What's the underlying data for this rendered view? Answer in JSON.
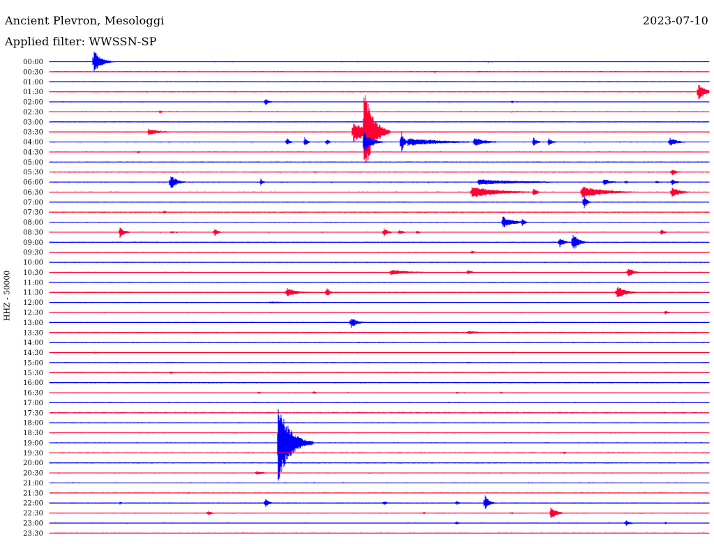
{
  "header": {
    "station": "Ancient Plevron, Mesologgi",
    "filter": "Applied filter: WWSSN-SP",
    "date": "2023-07-10"
  },
  "colors": {
    "even": "#0000ff",
    "odd": "#ff0033"
  },
  "chart_data": {
    "type": "line",
    "title": "Ancient Plevron, Mesologgi",
    "subtitle": "Applied filter: WWSSN-SP",
    "date": "2023-07-10",
    "ylabel": "HHZ - 50000",
    "xlabel": "",
    "row_labels": [
      "00:00",
      "00:30",
      "01:00",
      "01:30",
      "02:00",
      "02:30",
      "03:00",
      "03:30",
      "04:00",
      "04:30",
      "05:00",
      "05:30",
      "06:00",
      "06:30",
      "07:00",
      "07:30",
      "08:00",
      "08:30",
      "09:00",
      "09:30",
      "10:00",
      "10:30",
      "11:00",
      "11:30",
      "12:00",
      "12:30",
      "13:00",
      "13:30",
      "14:00",
      "14:30",
      "15:00",
      "15:30",
      "16:00",
      "16:30",
      "17:00",
      "17:30",
      "18:00",
      "18:30",
      "19:00",
      "19:30",
      "20:00",
      "20:30",
      "21:00",
      "21:30",
      "22:00",
      "22:30",
      "23:00",
      "23:30"
    ],
    "row_minutes": 30,
    "series_colors": [
      "#0000ff",
      "#ff0033"
    ],
    "events": [
      {
        "row": 0,
        "minute": 2.0,
        "amp": 18,
        "dur": 1.0
      },
      {
        "row": 0,
        "minute": 2.1,
        "amp": 6,
        "dur": 0.4
      },
      {
        "row": 1,
        "minute": 17.5,
        "amp": 1.5,
        "dur": 1.0
      },
      {
        "row": 1,
        "minute": 19.5,
        "amp": 1.5,
        "dur": 0.3
      },
      {
        "row": 3,
        "minute": 29.5,
        "amp": 13,
        "dur": 1.0
      },
      {
        "row": 4,
        "minute": 9.8,
        "amp": 6,
        "dur": 0.5
      },
      {
        "row": 4,
        "minute": 21.0,
        "amp": 3,
        "dur": 0.3
      },
      {
        "row": 5,
        "minute": 5.0,
        "amp": 2.5,
        "dur": 0.5
      },
      {
        "row": 5,
        "minute": 21.0,
        "amp": 1.2,
        "dur": 0.6
      },
      {
        "row": 7,
        "minute": 4.5,
        "amp": 5,
        "dur": 1.6
      },
      {
        "row": 7,
        "minute": 13.8,
        "amp": 16,
        "dur": 2.0
      },
      {
        "row": 7,
        "minute": 14.3,
        "amp": 70,
        "dur": 1.2
      },
      {
        "row": 8,
        "minute": 10.8,
        "amp": 6,
        "dur": 0.4
      },
      {
        "row": 8,
        "minute": 11.6,
        "amp": 8,
        "dur": 0.4
      },
      {
        "row": 8,
        "minute": 12.6,
        "amp": 5,
        "dur": 0.4
      },
      {
        "row": 8,
        "minute": 14.3,
        "amp": 16,
        "dur": 1.0
      },
      {
        "row": 8,
        "minute": 16.0,
        "amp": 18,
        "dur": 0.4
      },
      {
        "row": 8,
        "minute": 16.3,
        "amp": 6,
        "dur": 4.8
      },
      {
        "row": 8,
        "minute": 19.3,
        "amp": 7,
        "dur": 1.6
      },
      {
        "row": 8,
        "minute": 22.0,
        "amp": 8,
        "dur": 0.5
      },
      {
        "row": 8,
        "minute": 22.7,
        "amp": 6,
        "dur": 0.5
      },
      {
        "row": 8,
        "minute": 28.2,
        "amp": 7,
        "dur": 1.0
      },
      {
        "row": 9,
        "minute": 4.0,
        "amp": 2.5,
        "dur": 0.4
      },
      {
        "row": 10,
        "minute": 7.2,
        "amp": 1.5,
        "dur": 0.3
      },
      {
        "row": 11,
        "minute": 28.3,
        "amp": 6,
        "dur": 0.6
      },
      {
        "row": 11,
        "minute": 12.0,
        "amp": 1.2,
        "dur": 2.0
      },
      {
        "row": 12,
        "minute": 5.5,
        "amp": 12,
        "dur": 0.8
      },
      {
        "row": 12,
        "minute": 9.6,
        "amp": 6,
        "dur": 0.3
      },
      {
        "row": 12,
        "minute": 19.5,
        "amp": 4,
        "dur": 7.0
      },
      {
        "row": 12,
        "minute": 25.2,
        "amp": 5,
        "dur": 1.0
      },
      {
        "row": 12,
        "minute": 26.2,
        "amp": 3,
        "dur": 0.4
      },
      {
        "row": 12,
        "minute": 27.6,
        "amp": 3,
        "dur": 0.4
      },
      {
        "row": 12,
        "minute": 28.3,
        "amp": 5,
        "dur": 0.6
      },
      {
        "row": 13,
        "minute": 19.2,
        "amp": 8,
        "dur": 4.0
      },
      {
        "row": 13,
        "minute": 22.0,
        "amp": 6,
        "dur": 0.6
      },
      {
        "row": 13,
        "minute": 24.2,
        "amp": 9,
        "dur": 3.2
      },
      {
        "row": 13,
        "minute": 28.3,
        "amp": 8,
        "dur": 1.2
      },
      {
        "row": 14,
        "minute": 24.3,
        "amp": 12,
        "dur": 0.4
      },
      {
        "row": 15,
        "minute": 5.2,
        "amp": 2.5,
        "dur": 0.5
      },
      {
        "row": 16,
        "minute": 20.6,
        "amp": 9,
        "dur": 1.5
      },
      {
        "row": 16,
        "minute": 21.5,
        "amp": 7,
        "dur": 0.4
      },
      {
        "row": 17,
        "minute": 3.2,
        "amp": 9,
        "dur": 0.6
      },
      {
        "row": 17,
        "minute": 7.5,
        "amp": 7,
        "dur": 0.5
      },
      {
        "row": 17,
        "minute": 15.2,
        "amp": 7,
        "dur": 0.6
      },
      {
        "row": 17,
        "minute": 15.9,
        "amp": 4,
        "dur": 0.6
      },
      {
        "row": 17,
        "minute": 16.7,
        "amp": 3,
        "dur": 0.5
      },
      {
        "row": 17,
        "minute": 5.5,
        "amp": 1.5,
        "dur": 2.0
      },
      {
        "row": 17,
        "minute": 27.8,
        "amp": 5,
        "dur": 0.5
      },
      {
        "row": 18,
        "minute": 23.2,
        "amp": 8,
        "dur": 0.6
      },
      {
        "row": 18,
        "minute": 23.8,
        "amp": 14,
        "dur": 0.8
      },
      {
        "row": 19,
        "minute": 19.2,
        "amp": 3,
        "dur": 0.5
      },
      {
        "row": 21,
        "minute": 15.5,
        "amp": 4,
        "dur": 3.0
      },
      {
        "row": 21,
        "minute": 19.0,
        "amp": 4,
        "dur": 0.6
      },
      {
        "row": 21,
        "minute": 26.3,
        "amp": 7,
        "dur": 0.8
      },
      {
        "row": 23,
        "minute": 10.8,
        "amp": 7,
        "dur": 1.4
      },
      {
        "row": 23,
        "minute": 12.6,
        "amp": 9,
        "dur": 0.4
      },
      {
        "row": 23,
        "minute": 25.8,
        "amp": 10,
        "dur": 1.2
      },
      {
        "row": 24,
        "minute": 10.0,
        "amp": 1.5,
        "dur": 5.0
      },
      {
        "row": 25,
        "minute": 28.0,
        "amp": 3,
        "dur": 0.5
      },
      {
        "row": 26,
        "minute": 13.7,
        "amp": 9,
        "dur": 0.8
      },
      {
        "row": 27,
        "minute": 19.0,
        "amp": 3,
        "dur": 1.6
      },
      {
        "row": 27,
        "minute": 4.0,
        "amp": 1.2,
        "dur": 1.5
      },
      {
        "row": 29,
        "minute": 2.0,
        "amp": 1.5,
        "dur": 2.0
      },
      {
        "row": 29,
        "minute": 21.0,
        "amp": 1.2,
        "dur": 1.5
      },
      {
        "row": 31,
        "minute": 5.5,
        "amp": 2.5,
        "dur": 0.4
      },
      {
        "row": 33,
        "minute": 9.5,
        "amp": 2,
        "dur": 0.4
      },
      {
        "row": 33,
        "minute": 12.0,
        "amp": 2.5,
        "dur": 0.5
      },
      {
        "row": 33,
        "minute": 18.5,
        "amp": 2,
        "dur": 0.4
      },
      {
        "row": 33,
        "minute": 20.5,
        "amp": 2,
        "dur": 0.4
      },
      {
        "row": 38,
        "minute": 10.4,
        "amp": 60,
        "dur": 1.6
      },
      {
        "row": 38,
        "minute": 10.8,
        "amp": 12,
        "dur": 1.2
      },
      {
        "row": 39,
        "minute": 23.4,
        "amp": 2,
        "dur": 0.4
      },
      {
        "row": 41,
        "minute": 9.4,
        "amp": 3,
        "dur": 1.2
      },
      {
        "row": 43,
        "minute": 6.3,
        "amp": 1.5,
        "dur": 0.3
      },
      {
        "row": 44,
        "minute": 3.2,
        "amp": 2.5,
        "dur": 0.3
      },
      {
        "row": 44,
        "minute": 9.8,
        "amp": 8,
        "dur": 0.5
      },
      {
        "row": 44,
        "minute": 15.2,
        "amp": 4,
        "dur": 0.4
      },
      {
        "row": 44,
        "minute": 18.5,
        "amp": 4,
        "dur": 0.4
      },
      {
        "row": 44,
        "minute": 19.8,
        "amp": 12,
        "dur": 0.6
      },
      {
        "row": 45,
        "minute": 7.2,
        "amp": 4,
        "dur": 0.6
      },
      {
        "row": 45,
        "minute": 17.0,
        "amp": 2.5,
        "dur": 0.4
      },
      {
        "row": 45,
        "minute": 21.0,
        "amp": 2.5,
        "dur": 0.3
      },
      {
        "row": 45,
        "minute": 22.8,
        "amp": 9,
        "dur": 0.8
      },
      {
        "row": 46,
        "minute": 18.5,
        "amp": 3,
        "dur": 0.4
      },
      {
        "row": 46,
        "minute": 26.2,
        "amp": 5,
        "dur": 0.6
      },
      {
        "row": 46,
        "minute": 28.0,
        "amp": 2,
        "dur": 0.3
      }
    ]
  }
}
